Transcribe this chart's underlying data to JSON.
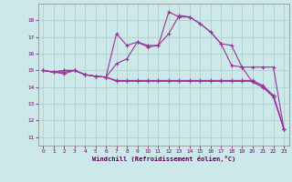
{
  "bg_color": "#cce8e8",
  "grid_color": "#aacccc",
  "line_color": "#993399",
  "xlabel": "Windchill (Refroidissement éolien,°C)",
  "ylim": [
    10.5,
    19.0
  ],
  "xlim": [
    -0.5,
    23.5
  ],
  "yticks": [
    11,
    12,
    13,
    14,
    15,
    16,
    17,
    18
  ],
  "xticks": [
    0,
    1,
    2,
    3,
    4,
    5,
    6,
    7,
    8,
    9,
    10,
    11,
    12,
    13,
    14,
    15,
    16,
    17,
    18,
    19,
    20,
    21,
    22,
    23
  ],
  "line1_y": [
    15.0,
    14.9,
    15.0,
    15.0,
    14.75,
    14.65,
    14.6,
    17.2,
    16.5,
    16.7,
    16.4,
    16.5,
    18.5,
    18.2,
    18.2,
    17.8,
    17.3,
    16.6,
    15.3,
    15.2,
    15.2,
    15.2,
    15.2,
    11.5
  ],
  "line2_y": [
    15.0,
    14.9,
    15.0,
    15.0,
    14.75,
    14.65,
    14.6,
    15.4,
    15.7,
    16.7,
    16.5,
    16.5,
    17.2,
    18.3,
    18.2,
    17.8,
    17.3,
    16.6,
    16.5,
    15.2,
    14.3,
    14.0,
    13.5,
    11.5
  ],
  "line3_y": [
    15.0,
    14.9,
    14.9,
    15.0,
    14.75,
    14.65,
    14.6,
    14.4,
    14.4,
    14.4,
    14.4,
    14.4,
    14.4,
    14.4,
    14.4,
    14.4,
    14.4,
    14.4,
    14.4,
    14.4,
    14.4,
    14.1,
    13.5,
    11.5
  ],
  "line4_y": [
    15.0,
    14.9,
    14.8,
    15.0,
    14.75,
    14.65,
    14.6,
    14.35,
    14.35,
    14.35,
    14.35,
    14.35,
    14.35,
    14.35,
    14.35,
    14.35,
    14.35,
    14.35,
    14.35,
    14.35,
    14.35,
    14.0,
    13.4,
    11.5
  ]
}
